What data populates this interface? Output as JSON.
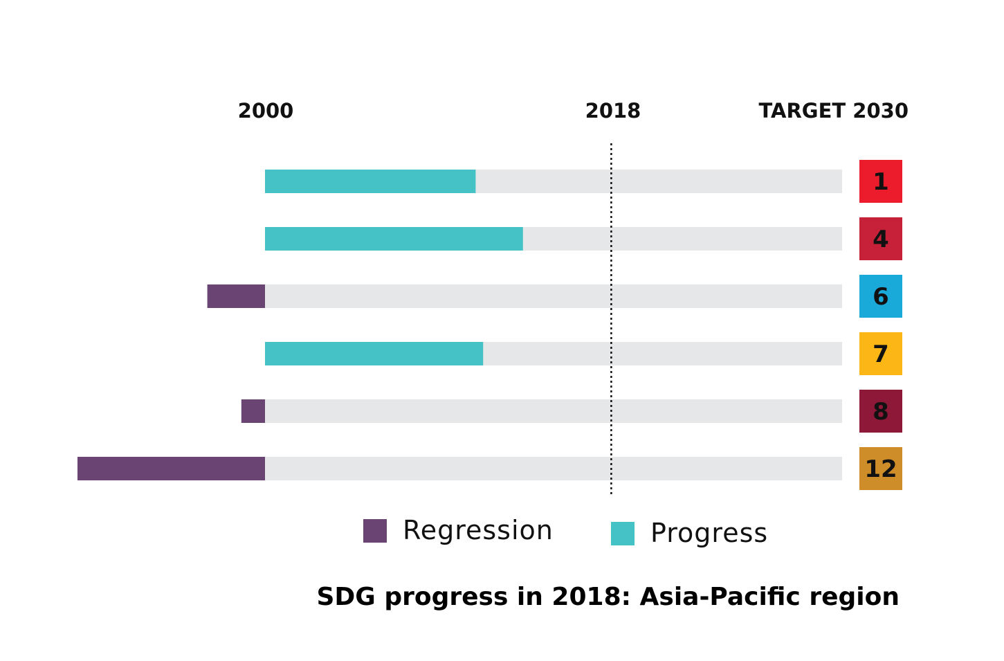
{
  "chart_data": {
    "type": "bar",
    "orientation": "horizontal",
    "title": "SDG progress in 2018: Asia-Pacific region",
    "axis_markers": [
      "2000",
      "2018",
      "TARGET 2030"
    ],
    "xlim": [
      -0.33,
      1.0
    ],
    "current_marker_value": 0.6,
    "categories": [
      "1",
      "4",
      "6",
      "7",
      "8",
      "12"
    ],
    "values": [
      0.365,
      0.447,
      -0.1,
      0.378,
      -0.041,
      -0.325
    ],
    "category_colors": [
      "#ED1C2C",
      "#C7213A",
      "#1AAAD9",
      "#FCB716",
      "#8E1838",
      "#CF8D2A"
    ],
    "colors": {
      "progress": "#45C2C6",
      "regression": "#6A4473",
      "track": "#E6E7E8"
    },
    "legend": [
      {
        "label": "Regression",
        "key": "regression"
      },
      {
        "label": "Progress",
        "key": "progress"
      }
    ],
    "legend_position": "bottom"
  }
}
